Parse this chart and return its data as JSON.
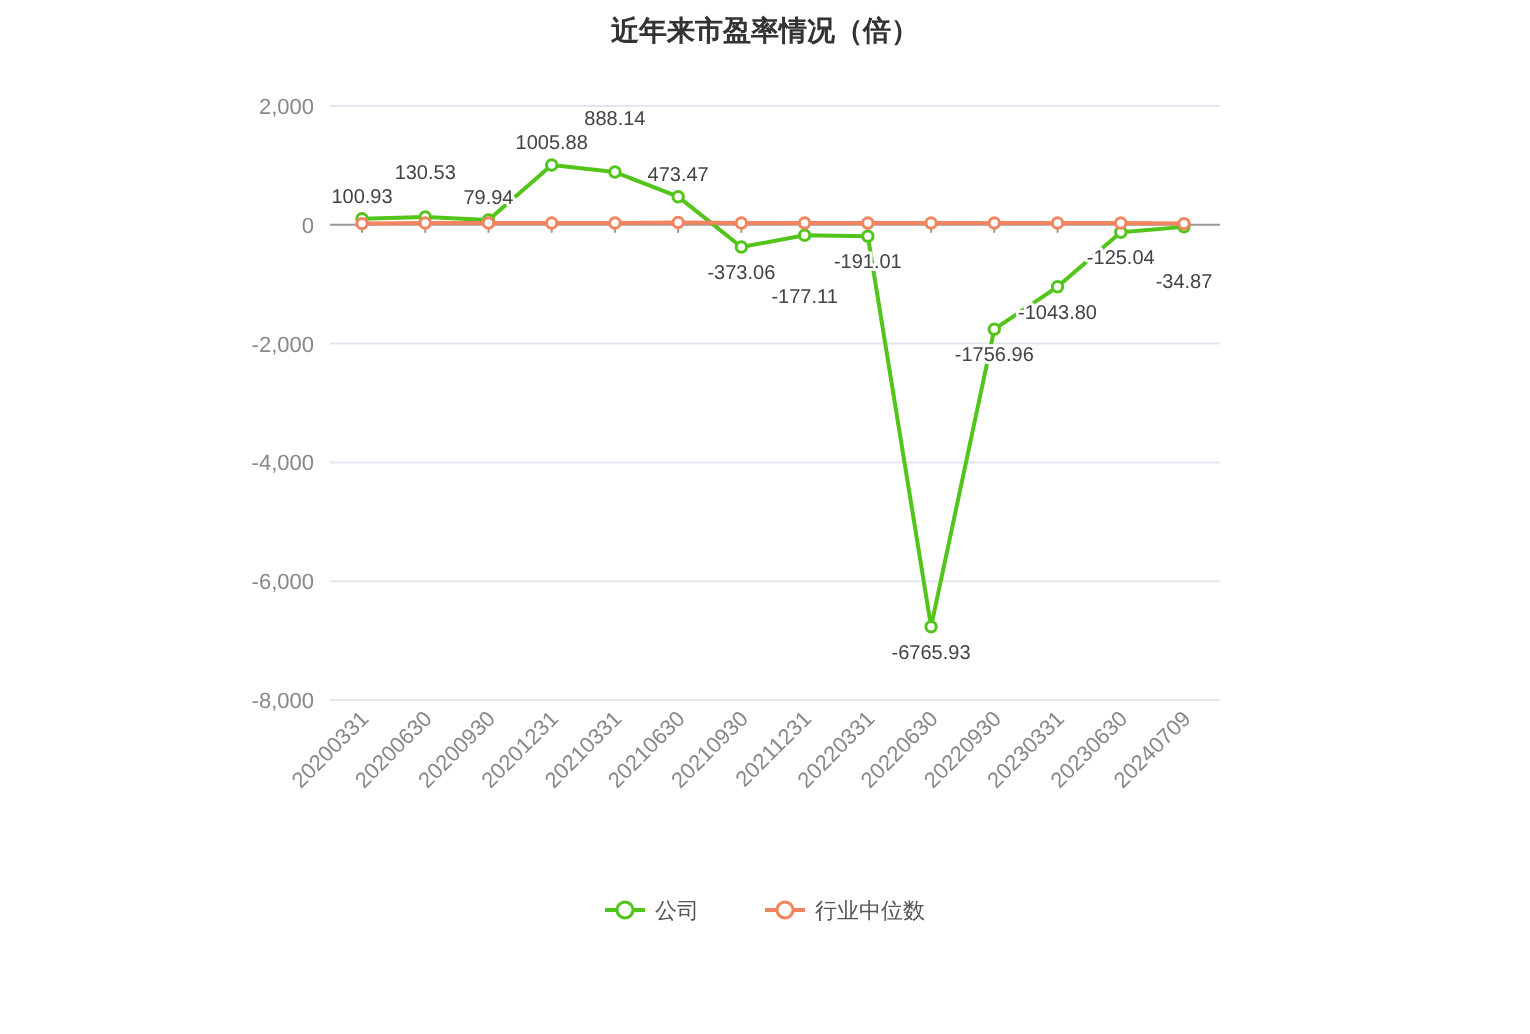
{
  "chart_data": {
    "type": "line",
    "title": "近年来市盈率情况（倍）",
    "categories": [
      "20200331",
      "20200630",
      "20200930",
      "20201231",
      "20210331",
      "20210630",
      "20210930",
      "20211231",
      "20220331",
      "20220630",
      "20220930",
      "20230331",
      "20230630",
      "20240709"
    ],
    "series": [
      {
        "name": "公司",
        "color": "#52c41a",
        "values": [
          100.93,
          130.53,
          79.94,
          1005.88,
          888.14,
          473.47,
          -373.06,
          -177.11,
          -191.01,
          -6765.93,
          -1756.96,
          -1043.8,
          -125.04,
          -34.87
        ],
        "value_labels": [
          "100.93",
          "130.53",
          "79.94",
          "1005.88",
          "888.14",
          "473.47",
          "-373.06",
          "-177.11",
          "-191.01",
          "-6765.93",
          "-1756.96",
          "-1043.80",
          "-125.04",
          "-34.87"
        ]
      },
      {
        "name": "行业中位数",
        "color": "#f4845f",
        "values": [
          20,
          30,
          30,
          30,
          30,
          40,
          30,
          30,
          30,
          30,
          30,
          30,
          30,
          20
        ]
      }
    ],
    "ylim": [
      -8000,
      2000
    ],
    "yticks": [
      {
        "value": -8000,
        "label": "-8,000"
      },
      {
        "value": -6000,
        "label": "-6,000"
      },
      {
        "value": -4000,
        "label": "-4,000"
      },
      {
        "value": -2000,
        "label": "-2,000"
      },
      0,
      {
        "value": 2000,
        "label": "2,000"
      }
    ],
    "grid": "y",
    "legend": "bottom",
    "marker": "circle",
    "line_style": "solid"
  }
}
